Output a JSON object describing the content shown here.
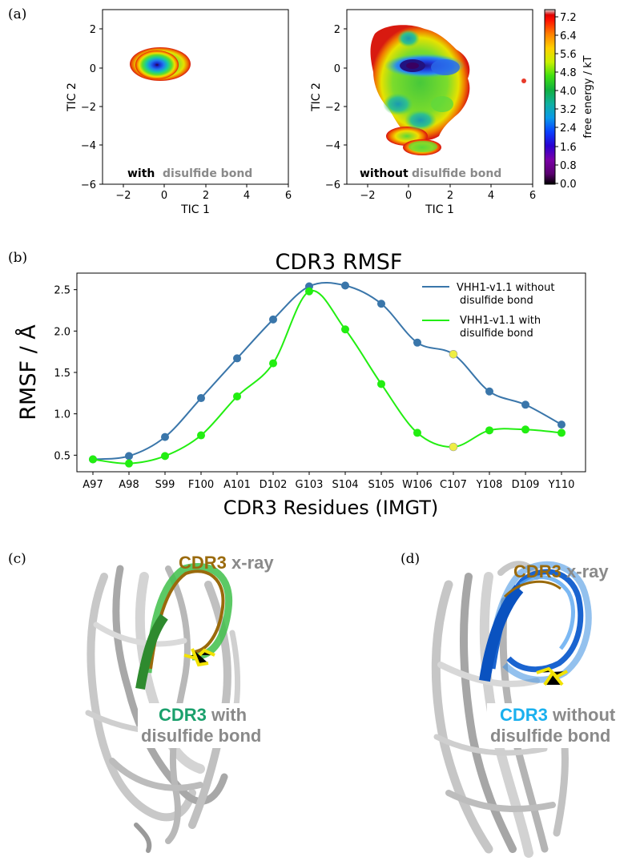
{
  "panels": {
    "a": {
      "label": "(a)",
      "tic_left": {
        "xlabel": "TIC 1",
        "ylabel": "TIC 2",
        "xlim": [
          -3,
          6
        ],
        "ylim": [
          -6,
          3
        ],
        "xticks": [
          "−2",
          "0",
          "2",
          "4",
          "6"
        ],
        "yticks": [
          "2",
          "0",
          "−2",
          "−4",
          "−6"
        ],
        "caption_bold": "with",
        "caption_grey": "disulfide bond"
      },
      "tic_right": {
        "xlabel": "TIC 1",
        "ylabel": "TIC 2",
        "xlim": [
          -3,
          6
        ],
        "ylim": [
          -6,
          3
        ],
        "xticks": [
          "−2",
          "0",
          "2",
          "4",
          "6"
        ],
        "yticks": [
          "2",
          "0",
          "−2",
          "−4",
          "−6"
        ],
        "caption_bold": "without",
        "caption_grey": "disulfide bond"
      },
      "colorbar": {
        "label": "free energy / kT",
        "ticks": [
          "7.2",
          "6.4",
          "5.6",
          "4.8",
          "4.0",
          "3.2",
          "2.4",
          "1.6",
          "0.8",
          "0.0"
        ]
      }
    },
    "b": {
      "label": "(b)"
    },
    "c": {
      "label": "(c)",
      "xray_a": "CDR3",
      "xray_b": "x-ray",
      "cdr3": "CDR3",
      "with_word": "with",
      "line2": "disulfide bond"
    },
    "d": {
      "label": "(d)",
      "xray_a": "CDR3",
      "xray_b": "x-ray",
      "cdr3": "CDR3",
      "without_word": "without",
      "line2": "disulfide bond"
    }
  },
  "colors": {
    "without_series": "#3a76aa",
    "with_series": "#22ee11",
    "highlight_point": "#eeee44",
    "cdr3_xray": "#9a6a0c",
    "cdr3_with": "#1aa06c",
    "cdr3_without": "#1ab0ee",
    "grey_text": "#8a8a8a"
  },
  "chart_data": [
    {
      "type": "heatmap",
      "panel": "a-left",
      "xlabel": "TIC 1",
      "ylabel": "TIC 2",
      "xlim": [
        -3,
        6
      ],
      "ylim": [
        -6,
        3
      ],
      "basins": [
        {
          "x": -0.3,
          "y": 0.1,
          "free_energy": 0.0
        }
      ]
    },
    {
      "type": "heatmap",
      "panel": "a-right",
      "xlabel": "TIC 1",
      "ylabel": "TIC 2",
      "xlim": [
        -3,
        6
      ],
      "ylim": [
        -6,
        3
      ],
      "basins": [
        {
          "x": 0.3,
          "y": 0.1,
          "free_energy": 0.0
        },
        {
          "x": 1.7,
          "y": 0.0,
          "free_energy": 1.6
        },
        {
          "x": -0.1,
          "y": -1.2,
          "free_energy": 2.4
        },
        {
          "x": 0.3,
          "y": -2.4,
          "free_energy": 3.2
        },
        {
          "x": 0.0,
          "y": 1.4,
          "free_energy": 4.0
        },
        {
          "x": 1.7,
          "y": -1.8,
          "free_energy": 4.8
        },
        {
          "x": 1.0,
          "y": -4.1,
          "free_energy": 5.6
        }
      ],
      "colorbar": {
        "label": "free energy / kT",
        "range": [
          0.0,
          7.6
        ]
      }
    },
    {
      "type": "line",
      "panel": "b",
      "title": "CDR3 RMSF",
      "xlabel": "CDR3 Residues (IMGT)",
      "ylabel": "RMSF / Å",
      "categories": [
        "A97",
        "A98",
        "S99",
        "F100",
        "A101",
        "D102",
        "G103",
        "S104",
        "S105",
        "W106",
        "C107",
        "Y108",
        "D109",
        "Y110"
      ],
      "ylim": [
        0.3,
        2.7
      ],
      "yticks": [
        0.5,
        1.0,
        1.5,
        2.0,
        2.5
      ],
      "yticklabels": [
        "0.5",
        "1.0",
        "1.5",
        "2.0",
        "2.5"
      ],
      "legend_position": "top-right",
      "series": [
        {
          "name": "VHH1-v1.1 without disulfide bond",
          "legend_lines": [
            "VHH1-v1.1 without",
            "disulfide bond"
          ],
          "values": [
            0.45,
            0.49,
            0.72,
            1.19,
            1.67,
            2.14,
            2.54,
            2.55,
            2.33,
            1.86,
            1.72,
            1.27,
            1.11,
            0.87
          ]
        },
        {
          "name": "VHH1-v1.1 with disulfide bond",
          "legend_lines": [
            "VHH1-v1.1 with",
            "disulfide bond"
          ],
          "values": [
            0.45,
            0.4,
            0.49,
            0.74,
            1.21,
            1.61,
            2.48,
            2.02,
            1.36,
            0.77,
            0.6,
            0.8,
            0.81,
            0.77
          ]
        }
      ],
      "highlighted_category": "C107"
    }
  ]
}
